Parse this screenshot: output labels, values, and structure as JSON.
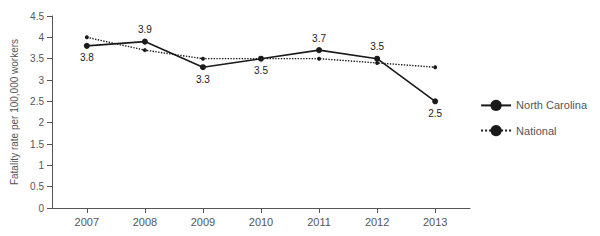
{
  "chart_data": {
    "type": "line",
    "x": [
      2007,
      2008,
      2009,
      2010,
      2011,
      2012,
      2013
    ],
    "xlim": [
      2006.4,
      2013.6
    ],
    "xticks": [
      2007,
      2008,
      2009,
      2010,
      2011,
      2012,
      2013
    ],
    "ylabel": "Fatality rate per 100,000 workers",
    "ylim": [
      0,
      4.5
    ],
    "yticks": [
      0,
      0.5,
      1,
      1.5,
      2,
      2.5,
      3,
      3.5,
      4,
      4.5
    ],
    "grid": false,
    "legend": "right",
    "series": [
      {
        "name": "National",
        "color": "#1a1a1a",
        "line_style": "dotted",
        "marker": "circle",
        "values": [
          4.0,
          3.7,
          3.5,
          3.5,
          3.5,
          3.4,
          3.3
        ]
      },
      {
        "name": "North Carolina",
        "color": "#1a1a1a",
        "line_style": "solid",
        "marker": "circle",
        "data_labels": true,
        "values": [
          3.8,
          3.9,
          3.3,
          3.5,
          3.7,
          3.5,
          2.5
        ]
      }
    ]
  }
}
